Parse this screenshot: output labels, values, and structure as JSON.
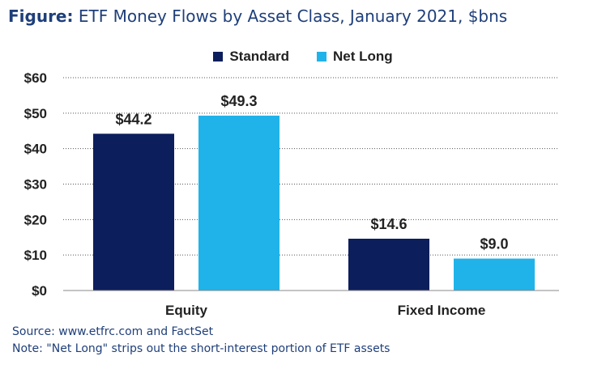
{
  "title": {
    "lead": "Figure:",
    "text": "ETF Money Flows by Asset Class, January 2021, $bns"
  },
  "chart_data": {
    "type": "bar",
    "categories": [
      "Equity",
      "Fixed Income"
    ],
    "series": [
      {
        "name": "Standard",
        "values": [
          44.2,
          14.6
        ],
        "labels": [
          "$44.2",
          "$14.6"
        ],
        "color": "#0c1e5c"
      },
      {
        "name": "Net Long",
        "values": [
          49.3,
          9.0
        ],
        "labels": [
          "$49.3",
          "$9.0"
        ],
        "color": "#1fb3ea"
      }
    ],
    "yticks": [
      0,
      10,
      20,
      30,
      40,
      50,
      60
    ],
    "ytick_labels": [
      "$0",
      "$10",
      "$20",
      "$30",
      "$40",
      "$50",
      "$60"
    ],
    "ylim": [
      0,
      60
    ],
    "grid": "dotted horizontal",
    "legend_position": "top-center",
    "xlabel": "",
    "ylabel": ""
  },
  "notes": {
    "source": "Source: www.etfrc.com and FactSet",
    "note": "Note: \"Net Long\" strips out the short-interest portion of ETF assets"
  }
}
